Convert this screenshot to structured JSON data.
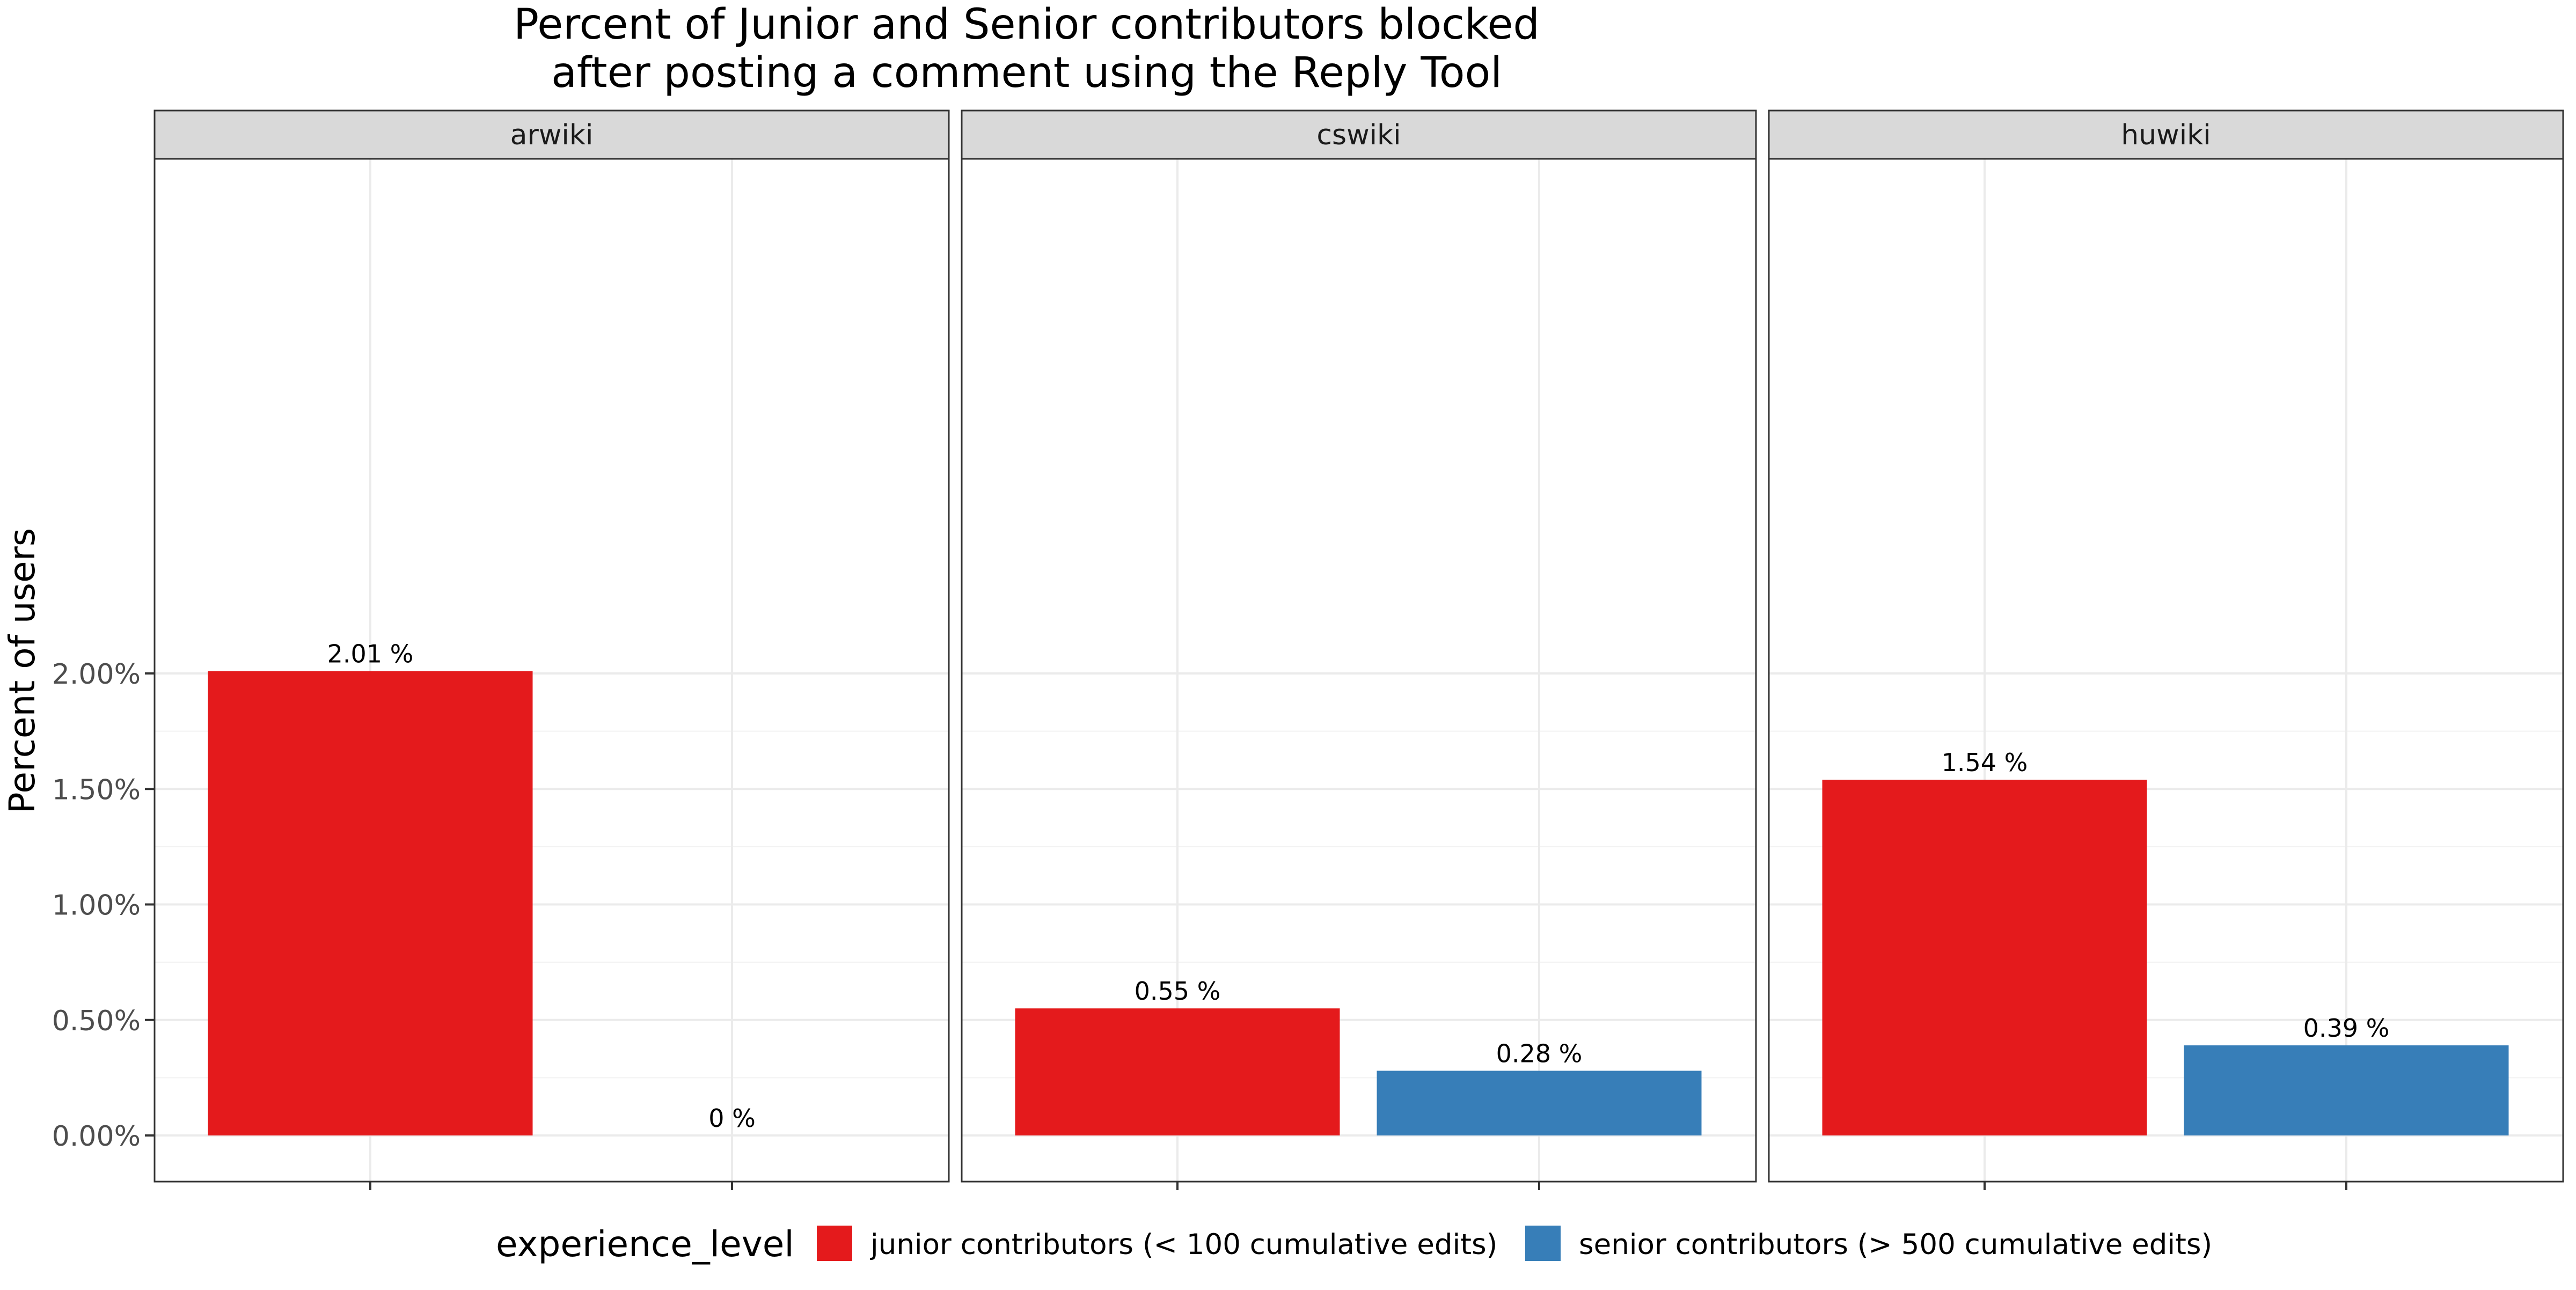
{
  "chart_data": {
    "type": "bar",
    "title": "Percent of Junior and Senior contributors blocked\nafter posting a comment using the Reply Tool",
    "ylabel": "Percent of users",
    "xlabel": "",
    "ylim": [
      0,
      2.1
    ],
    "y_ticks": [
      0,
      0.5,
      1.0,
      1.5,
      2.0
    ],
    "y_tick_labels": [
      "0.00%",
      "0.50%",
      "1.00%",
      "1.50%",
      "2.00%"
    ],
    "grid": true,
    "facets": [
      {
        "name": "arwiki",
        "bars": [
          {
            "series": "junior contributors (< 100 cumulative edits)",
            "value": 2.01,
            "label": "2.01 %"
          },
          {
            "series": "senior contributors (> 500 cumulative edits)",
            "value": 0,
            "label": "0 %"
          }
        ]
      },
      {
        "name": "cswiki",
        "bars": [
          {
            "series": "junior contributors (< 100 cumulative edits)",
            "value": 0.55,
            "label": "0.55 %"
          },
          {
            "series": "senior contributors (> 500 cumulative edits)",
            "value": 0.28,
            "label": "0.28 %"
          }
        ]
      },
      {
        "name": "huwiki",
        "bars": [
          {
            "series": "junior contributors (< 100 cumulative edits)",
            "value": 1.54,
            "label": "1.54 %"
          },
          {
            "series": "senior contributors (> 500 cumulative edits)",
            "value": 0.39,
            "label": "0.39 %"
          }
        ]
      }
    ],
    "legend": {
      "title": "experience_level",
      "placement": "bottom",
      "items": [
        {
          "name": "junior contributors (< 100 cumulative edits)",
          "color": "#E41A1C"
        },
        {
          "name": "senior contributors (> 500 cumulative edits)",
          "color": "#377EB8"
        }
      ]
    }
  }
}
